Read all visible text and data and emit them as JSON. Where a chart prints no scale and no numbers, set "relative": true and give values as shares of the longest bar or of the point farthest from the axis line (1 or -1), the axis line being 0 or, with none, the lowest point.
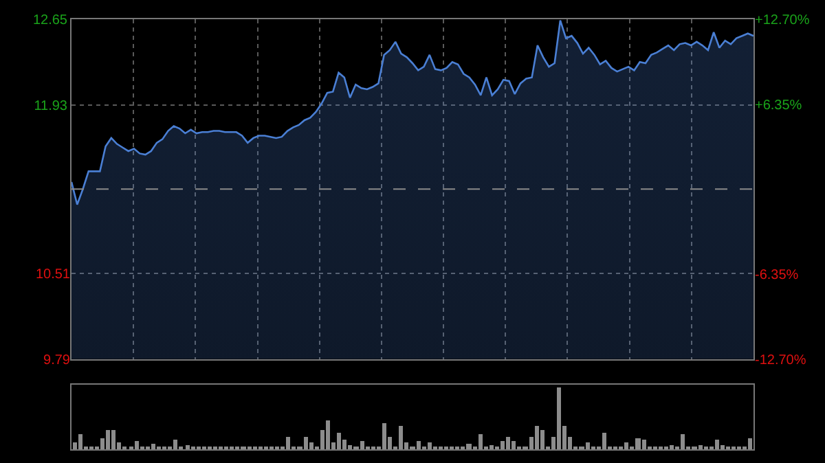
{
  "chart_data": [
    {
      "type": "area",
      "categories": [
        null,
        null,
        null,
        null,
        null,
        null,
        null,
        null,
        null,
        null,
        null,
        null,
        null,
        null,
        null,
        null,
        null,
        null,
        null,
        null,
        null,
        null,
        null,
        null,
        null,
        null,
        null,
        null,
        null,
        null,
        null,
        null,
        null,
        null,
        null,
        null,
        null,
        null,
        null,
        null,
        null,
        null,
        null,
        null,
        null,
        null,
        null,
        null,
        null,
        null,
        null,
        null,
        null,
        null,
        null,
        null,
        null,
        null,
        null,
        null,
        null,
        null,
        null,
        null,
        null,
        null,
        null,
        null,
        null,
        null,
        null,
        null,
        null,
        null,
        null,
        null,
        null,
        null,
        null,
        null,
        null,
        null,
        null,
        null,
        null,
        null,
        null,
        null,
        null,
        null,
        null,
        null,
        null,
        null,
        null,
        null,
        null,
        null,
        null,
        null,
        null,
        null,
        null,
        null,
        null,
        null,
        null,
        null,
        null,
        null,
        null,
        null,
        null,
        null,
        null,
        null,
        null,
        null,
        null,
        null,
        null
      ],
      "series": [
        {
          "color": "#4a7fd4",
          "values": [
            11.28,
            11.09,
            11.22,
            11.37,
            11.37,
            11.37,
            11.58,
            11.65,
            11.6,
            11.57,
            11.54,
            11.56,
            11.52,
            11.51,
            11.54,
            11.61,
            11.64,
            11.71,
            11.75,
            11.73,
            11.69,
            11.72,
            11.69,
            11.7,
            11.7,
            11.71,
            11.71,
            11.7,
            11.7,
            11.7,
            11.67,
            11.61,
            11.65,
            11.67,
            11.67,
            11.66,
            11.65,
            11.66,
            11.71,
            11.74,
            11.76,
            11.8,
            11.82,
            11.87,
            11.94,
            12.03,
            12.04,
            12.2,
            12.16,
            11.99,
            12.1,
            12.07,
            12.06,
            12.08,
            12.11,
            12.35,
            12.39,
            12.46,
            12.36,
            12.33,
            12.28,
            12.22,
            12.25,
            12.35,
            12.23,
            12.22,
            12.24,
            12.29,
            12.27,
            12.19,
            12.16,
            12.1,
            12.01,
            12.16,
            12.01,
            12.06,
            12.14,
            12.13,
            12.02,
            12.11,
            12.15,
            12.16,
            12.43,
            12.33,
            12.25,
            12.28,
            12.64,
            12.49,
            12.51,
            12.45,
            12.36,
            12.41,
            12.35,
            12.27,
            12.3,
            12.24,
            12.21,
            12.23,
            12.25,
            12.22,
            12.29,
            12.28,
            12.35,
            12.37,
            12.4,
            12.43,
            12.39,
            12.44,
            12.45,
            12.43,
            12.46,
            12.43,
            12.39,
            12.54,
            12.41,
            12.47,
            12.44,
            12.49,
            12.51,
            12.53,
            12.51
          ]
        }
      ],
      "ylim": [
        9.79,
        12.65
      ],
      "yticks": [
        9.79,
        10.51,
        11.93,
        12.65
      ],
      "y2lim": [
        -12.7,
        12.7
      ],
      "y2ticks": [
        {
          "value": -12.7,
          "label": "-12.70%"
        },
        {
          "value": -6.35,
          "label": "-6.35%"
        },
        {
          "value": 6.35,
          "label": "+6.35%"
        },
        {
          "value": 12.7,
          "label": "+12.70%"
        }
      ],
      "ref_lines": [
        {
          "axis": "y",
          "value": 11.22,
          "label": null,
          "color": "#8a8a8a",
          "line_style": "dashed"
        }
      ],
      "grid": true,
      "marker": "none",
      "line_style": "solid"
    },
    {
      "type": "bar",
      "relative": true,
      "categories": [
        null,
        null,
        null,
        null,
        null,
        null,
        null,
        null,
        null,
        null,
        null,
        null,
        null,
        null,
        null,
        null,
        null,
        null,
        null,
        null,
        null,
        null,
        null,
        null,
        null,
        null,
        null,
        null,
        null,
        null,
        null,
        null,
        null,
        null,
        null,
        null,
        null,
        null,
        null,
        null,
        null,
        null,
        null,
        null,
        null,
        null,
        null,
        null,
        null,
        null,
        null,
        null,
        null,
        null,
        null,
        null,
        null,
        null,
        null,
        null,
        null,
        null,
        null,
        null,
        null,
        null,
        null,
        null,
        null,
        null,
        null,
        null,
        null,
        null,
        null,
        null,
        null,
        null,
        null,
        null,
        null,
        null,
        null,
        null,
        null,
        null,
        null,
        null,
        null,
        null,
        null,
        null,
        null,
        null,
        null,
        null,
        null,
        null,
        null,
        null,
        null,
        null,
        null,
        null,
        null,
        null,
        null,
        null,
        null,
        null,
        null,
        null,
        null,
        null,
        null,
        null,
        null,
        null,
        null,
        null,
        null
      ],
      "series": [
        {
          "color": "#8c8c8c",
          "values": [
            0.12,
            0.25,
            0.04,
            0.03,
            0.05,
            0.18,
            0.31,
            0.31,
            0.11,
            0.03,
            0.03,
            0.14,
            0.03,
            0.03,
            0.09,
            0.03,
            0.03,
            0.03,
            0.16,
            0.03,
            0.07,
            0.03,
            0.03,
            0.05,
            0.03,
            0.03,
            0.03,
            0.03,
            0.03,
            0.03,
            0.03,
            0.04,
            0.03,
            0.03,
            0.03,
            0.03,
            0.03,
            0.03,
            0.19,
            0.03,
            0.03,
            0.19,
            0.12,
            0.03,
            0.32,
            0.46,
            0.12,
            0.26,
            0.16,
            0.07,
            0.03,
            0.14,
            0.03,
            0.04,
            0.03,
            0.43,
            0.21,
            0.03,
            0.39,
            0.11,
            0.03,
            0.14,
            0.03,
            0.11,
            0.03,
            0.03,
            0.05,
            0.03,
            0.03,
            0.03,
            0.09,
            0.03,
            0.24,
            0.03,
            0.07,
            0.03,
            0.14,
            0.21,
            0.14,
            0.05,
            0.03,
            0.21,
            0.39,
            0.31,
            0.04,
            0.21,
            1,
            0.39,
            0.21,
            0.03,
            0.03,
            0.11,
            0.03,
            0.03,
            0.26,
            0.05,
            0.03,
            0.03,
            0.11,
            0.03,
            0.18,
            0.16,
            0.03,
            0.03,
            0.05,
            0.03,
            0.07,
            0.03,
            0.24,
            0.03,
            0.03,
            0.07,
            0.03,
            0.03,
            0.16,
            0.07,
            0.03,
            0.03,
            0.05,
            0.03,
            0.18
          ]
        }
      ]
    }
  ]
}
